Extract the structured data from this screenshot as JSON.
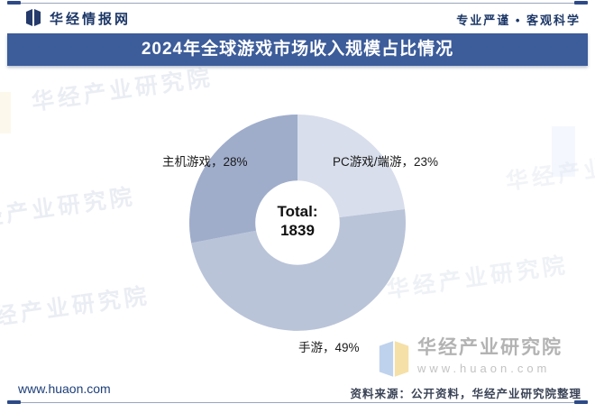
{
  "header": {
    "brand": "华经情报网",
    "slogan": "专业严谨 • 客观科学"
  },
  "title": "2024年全球游戏市场收入规模占比情况",
  "chart_data": {
    "type": "pie",
    "subtype": "donut",
    "title": "2024年全球游戏市场收入规模占比情况",
    "unit": "%",
    "direction": "clockwise",
    "start_angle": "12-oclock",
    "inner_radius_ratio": 0.39,
    "series": [
      {
        "name": "PC游戏/端游",
        "value": 23,
        "color": "#d8deeb"
      },
      {
        "name": "手游",
        "value": 49,
        "color": "#b9c4d9"
      },
      {
        "name": "主机游戏",
        "value": 28,
        "color": "#9fadcb"
      }
    ],
    "center_label": {
      "line1": "Total:",
      "line2": "1839"
    },
    "labels": {
      "pc": "PC游戏/端游，23%",
      "mobile": "手游，49%",
      "console": "主机游戏，28%"
    }
  },
  "watermark": {
    "company": "华经产业研究院",
    "site": "www.huaon.com"
  },
  "footer": {
    "website": "www.huaon.com",
    "source": "资料来源：公开资料，华经产业研究院整理"
  },
  "colors": {
    "brand_navy": "#1d3868",
    "titlebar_bg": "#3c5c9a",
    "rule_line": "#9aa5bb",
    "rule_cap": "#2d4a87",
    "label_text": "#1a1a1a"
  }
}
